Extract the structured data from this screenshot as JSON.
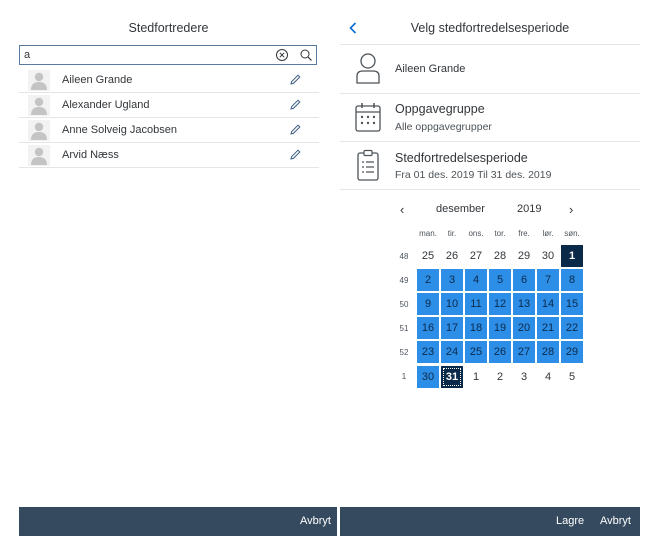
{
  "left": {
    "title": "Stedfortredere",
    "search": {
      "value": "a",
      "placeholder": ""
    },
    "people": [
      {
        "name": "Aileen Grande"
      },
      {
        "name": "Alexander Ugland"
      },
      {
        "name": "Anne Solveig Jacobsen"
      },
      {
        "name": "Arvid Næss"
      }
    ],
    "footer": {
      "cancel_label": "Avbryt"
    }
  },
  "right": {
    "title": "Velg stedfortredelsesperiode",
    "person": {
      "name": "Aileen Grande"
    },
    "task_group": {
      "title": "Oppgavegruppe",
      "value": "Alle oppgavegrupper"
    },
    "period": {
      "title": "Stedfortredelsesperiode",
      "value": "Fra 01 des. 2019 Til 31 des. 2019"
    },
    "calendar": {
      "month": "desember",
      "year": "2019",
      "prev": "‹",
      "next": "›",
      "weekdays": [
        "man.",
        "tir.",
        "ons.",
        "tor.",
        "fre.",
        "lør.",
        "søn."
      ],
      "weeks": [
        {
          "num": "48",
          "days": [
            "25",
            "26",
            "27",
            "28",
            "29",
            "30",
            "1"
          ]
        },
        {
          "num": "49",
          "days": [
            "2",
            "3",
            "4",
            "5",
            "6",
            "7",
            "8"
          ]
        },
        {
          "num": "50",
          "days": [
            "9",
            "10",
            "11",
            "12",
            "13",
            "14",
            "15"
          ]
        },
        {
          "num": "51",
          "days": [
            "16",
            "17",
            "18",
            "19",
            "20",
            "21",
            "22"
          ]
        },
        {
          "num": "52",
          "days": [
            "23",
            "24",
            "25",
            "26",
            "27",
            "28",
            "29"
          ]
        },
        {
          "num": "1",
          "days": [
            "30",
            "31",
            "1",
            "2",
            "3",
            "4",
            "5"
          ]
        }
      ]
    },
    "footer": {
      "save_label": "Lagre",
      "cancel_label": "Avbryt"
    }
  },
  "colors": {
    "accent": "#2d8ee8",
    "selected_dark": "#0b2a4a",
    "footer": "#354a5f"
  }
}
